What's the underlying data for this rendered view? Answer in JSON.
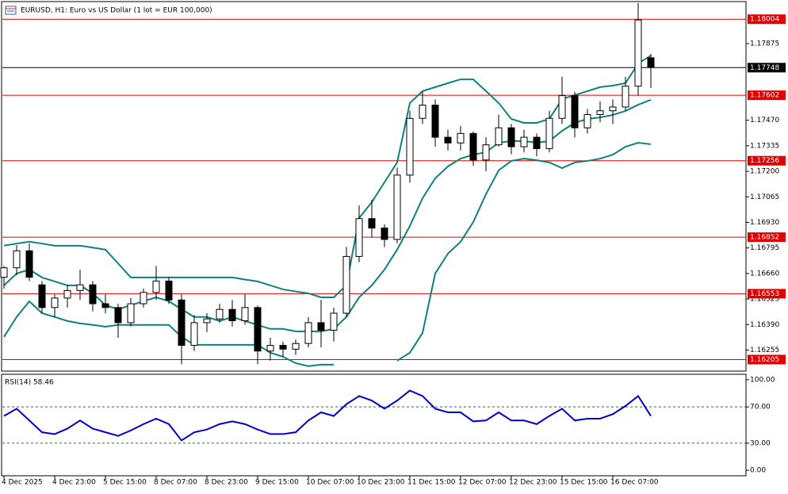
{
  "chart_data": {
    "type": "candlestick",
    "title": "EURUSD, H1:  Euro vs US Dollar (1 lot = EUR 100,000)",
    "categories": [
      "4 Dec 2025",
      null,
      null,
      null,
      "4 Dec 23:00",
      null,
      null,
      null,
      "5 Dec 15:00",
      null,
      null,
      null,
      "8 Dec 07:00",
      null,
      null,
      null,
      "8 Dec 23:00",
      null,
      null,
      null,
      "9 Dec 15:00",
      null,
      null,
      null,
      "10 Dec 07:00",
      null,
      null,
      null,
      "10 Dec 23:00",
      null,
      null,
      null,
      "11 Dec 15:00",
      null,
      null,
      null,
      "12 Dec 07:00",
      null,
      null,
      null,
      "12 Dec 23:00",
      null,
      null,
      null,
      "15 Dec 15:00",
      null,
      null,
      null,
      "16 Dec 07:00",
      null,
      null,
      null
    ],
    "open": [
      1.1664,
      1.1669,
      1.1678,
      1.166,
      1.1648,
      1.1653,
      1.1657,
      1.166,
      1.165,
      1.1648,
      1.164,
      1.165,
      1.1656,
      1.1662,
      1.1652,
      1.1628,
      1.164,
      1.1642,
      1.1647,
      1.1641,
      1.1648,
      1.1625,
      1.1628,
      1.1626,
      1.1629,
      1.164,
      1.1636,
      1.1645,
      1.1675,
      1.1695,
      1.169,
      1.1684,
      1.1718,
      1.1748,
      1.1755,
      1.1738,
      1.1735,
      1.174,
      1.1726,
      1.1734,
      1.1743,
      1.1733,
      1.1738,
      1.1732,
      1.1748,
      1.176,
      1.1743,
      1.175,
      1.1752,
      1.1754,
      1.1765,
      1.178
    ],
    "high": [
      1.167,
      1.1681,
      1.1682,
      1.1662,
      1.1655,
      1.166,
      1.1668,
      1.1662,
      1.1655,
      1.165,
      1.1653,
      1.1658,
      1.167,
      1.1664,
      1.1655,
      1.1644,
      1.1645,
      1.165,
      1.1652,
      1.1655,
      1.1649,
      1.1632,
      1.163,
      1.1631,
      1.1643,
      1.1652,
      1.1648,
      1.168,
      1.1702,
      1.1705,
      1.1692,
      1.1722,
      1.1752,
      1.1762,
      1.1758,
      1.1742,
      1.1744,
      1.1741,
      1.1738,
      1.175,
      1.1745,
      1.1742,
      1.174,
      1.1752,
      1.177,
      1.1762,
      1.1753,
      1.1757,
      1.1758,
      1.177,
      1.1809,
      1.1782
    ],
    "low": [
      1.1658,
      1.1665,
      1.1662,
      1.1645,
      1.1643,
      1.1648,
      1.1652,
      1.1646,
      1.1645,
      1.1632,
      1.1638,
      1.1648,
      1.1652,
      1.165,
      1.1618,
      1.1625,
      1.1635,
      1.164,
      1.1638,
      1.1639,
      1.1618,
      1.162,
      1.1622,
      1.1623,
      1.1627,
      1.1627,
      1.163,
      1.1643,
      1.1672,
      1.1685,
      1.168,
      1.1682,
      1.1714,
      1.1745,
      1.1733,
      1.1731,
      1.1731,
      1.1723,
      1.172,
      1.1733,
      1.1729,
      1.173,
      1.1728,
      1.173,
      1.1745,
      1.1738,
      1.174,
      1.1746,
      1.1745,
      1.1752,
      1.176,
      1.1764
    ],
    "close": [
      1.1669,
      1.1678,
      1.1664,
      1.1648,
      1.1653,
      1.1657,
      1.166,
      1.165,
      1.1648,
      1.164,
      1.165,
      1.1656,
      1.1662,
      1.1652,
      1.1628,
      1.164,
      1.1642,
      1.1647,
      1.1641,
      1.1648,
      1.1625,
      1.1628,
      1.1626,
      1.1629,
      1.164,
      1.1636,
      1.1645,
      1.1675,
      1.1695,
      1.169,
      1.1684,
      1.1718,
      1.1748,
      1.1755,
      1.1738,
      1.1735,
      1.174,
      1.1726,
      1.1734,
      1.1743,
      1.1733,
      1.1738,
      1.1732,
      1.1748,
      1.176,
      1.1743,
      1.175,
      1.1752,
      1.1754,
      1.1765,
      1.18,
      1.1775
    ],
    "bands": [
      {
        "color": "#0f8080",
        "values": [
          1.16807,
          1.16818,
          1.16828,
          1.16818,
          1.16807,
          1.16807,
          1.16807,
          1.16797,
          1.16786,
          1.16713,
          1.16639,
          1.16639,
          1.16639,
          1.16639,
          1.16639,
          1.16639,
          1.16639,
          1.16639,
          1.16639,
          1.16628,
          1.16618,
          1.16597,
          1.16576,
          1.16565,
          1.16555,
          1.16534,
          1.16534,
          1.16597,
          1.16953,
          1.17037,
          1.17142,
          1.17247,
          1.17561,
          1.17624,
          1.17645,
          1.17666,
          1.17686,
          1.17686,
          1.17624,
          1.17561,
          1.17477,
          1.17456,
          1.17456,
          1.17477,
          1.17582,
          1.17603,
          1.17624,
          1.17645,
          1.17653,
          1.17666,
          1.1777,
          1.17812
        ]
      },
      {
        "color": "#0f8080",
        "values": [
          1.16597,
          1.1666,
          1.16681,
          1.16639,
          1.16618,
          1.16597,
          1.16597,
          1.16555,
          1.16492,
          1.16471,
          1.16492,
          1.16513,
          1.16534,
          1.16513,
          1.16471,
          1.1643,
          1.1643,
          1.16409,
          1.1643,
          1.16409,
          1.16388,
          1.16367,
          1.16367,
          1.16354,
          1.16354,
          1.16354,
          1.16367,
          1.1643,
          1.16534,
          1.16597,
          1.16681,
          1.16786,
          1.16911,
          1.17058,
          1.17163,
          1.17226,
          1.17267,
          1.17288,
          1.17301,
          1.17351,
          1.1736,
          1.1736,
          1.17351,
          1.1736,
          1.17414,
          1.17456,
          1.17477,
          1.17485,
          1.17498,
          1.17519,
          1.17552,
          1.17578
        ]
      },
      {
        "color": "#0f8080",
        "values": [
          1.16325,
          1.1643,
          1.16513,
          1.1645,
          1.1643,
          1.16409,
          1.16396,
          1.16388,
          1.16379,
          1.16388,
          1.16388,
          1.16388,
          1.16388,
          1.16388,
          1.16325,
          1.16283,
          1.16283,
          1.16283,
          1.16283,
          1.16283,
          1.16283,
          1.16241,
          1.1622,
          1.16186,
          1.1617,
          1.16178,
          1.16178,
          null,
          null,
          null,
          null,
          1.16199,
          1.16241,
          1.16346,
          1.1666,
          1.16765,
          1.16828,
          1.16932,
          1.17079,
          1.17205,
          1.17255,
          1.17267,
          1.17259,
          1.17247,
          1.17217,
          1.17247,
          1.17255,
          1.17267,
          1.17288,
          1.1733,
          1.17351,
          1.17343
        ]
      }
    ],
    "ylim": [
      1.16144,
      1.18093
    ],
    "yticks": [
      1.17875,
      {
        "value": 1.1747,
        "label": "1.17470"
      },
      1.17335,
      {
        "value": 1.172,
        "label": "1.17200"
      },
      1.17065,
      {
        "value": 1.1693,
        "label": "1.16930"
      },
      1.16795,
      {
        "value": 1.1666,
        "label": "1.16660"
      },
      1.16525,
      {
        "value": 1.1639,
        "label": "1.16390"
      },
      1.16255
    ],
    "levels": [
      1.18004,
      1.17602,
      1.17256,
      1.16852,
      1.16553,
      1.16205
    ],
    "level_color": "#e00000",
    "current_price": 1.17748,
    "rsi": {
      "title": "RSI(14) 58.46",
      "color": "#0000cc",
      "values": [
        60,
        68,
        55,
        42,
        40,
        46,
        55,
        46,
        42,
        38,
        44,
        51,
        57,
        51,
        33,
        42,
        45,
        51,
        54,
        51,
        45,
        40,
        40,
        42,
        55,
        64,
        60,
        73,
        82,
        77,
        68,
        77,
        88,
        82,
        68,
        64,
        64,
        54,
        55,
        64,
        55,
        55,
        51,
        60,
        68,
        55,
        57,
        57,
        62,
        71,
        82,
        60
      ],
      "ylim": [
        -6,
        106
      ],
      "yticks": [
        {
          "value": 100,
          "label": "100.00"
        },
        {
          "value": 70,
          "label": "70.00"
        },
        {
          "value": 30,
          "label": "30.00"
        },
        {
          "value": 0,
          "label": "0.00"
        }
      ],
      "levels": [
        70,
        30
      ]
    }
  }
}
